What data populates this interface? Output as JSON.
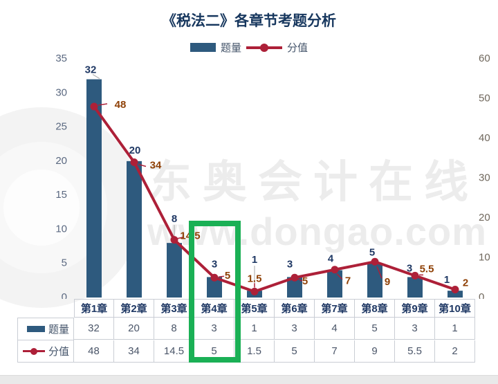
{
  "title": "《税法二》各章节考题分析",
  "legend": {
    "bar_label": "题量",
    "line_label": "分值"
  },
  "watermark": {
    "brand": "东奥会计在线",
    "url": "www.dongao.com"
  },
  "highlight": {
    "column": "第4章",
    "column_index": 3
  },
  "chart_data": {
    "type": "bar+line combo",
    "title": "《税法二》各章节考题分析",
    "categories": [
      "第1章",
      "第2章",
      "第3章",
      "第4章",
      "第5章",
      "第6章",
      "第7章",
      "第8章",
      "第9章",
      "第10章"
    ],
    "series": [
      {
        "name": "题量",
        "type": "bar",
        "axis": "left",
        "values": [
          32,
          20,
          8,
          3,
          1,
          3,
          4,
          5,
          3,
          1
        ]
      },
      {
        "name": "分值",
        "type": "line",
        "axis": "right",
        "values": [
          48,
          34,
          14.5,
          5,
          1.5,
          5,
          7,
          9,
          5.5,
          2
        ]
      }
    ],
    "left_axis": {
      "range": [
        0,
        35
      ],
      "ticks": [
        0,
        5,
        10,
        15,
        20,
        25,
        30,
        35
      ]
    },
    "right_axis": {
      "range": [
        0,
        60
      ],
      "ticks": [
        0,
        10,
        20,
        30,
        40,
        50,
        60
      ]
    },
    "grid": false,
    "legend_position": "top",
    "data_labels": true
  },
  "colors": {
    "bar": "#2e5a7e",
    "line": "#ad2038",
    "bar_label": "#1f3864",
    "line_label": "#8f4107",
    "axis_left_text": "#5a6880",
    "axis_right_text": "#6f675c",
    "title": "#17375e",
    "legend_text": "#44546a",
    "table_border": "#c9cdd4",
    "table_header_text": "#1f3864",
    "table_value_text": "#4a5568",
    "watermark": "#ececec",
    "highlight": "#1ab055",
    "footer": "#e9e9e9",
    "leader_gray": "#a6a6a6"
  }
}
